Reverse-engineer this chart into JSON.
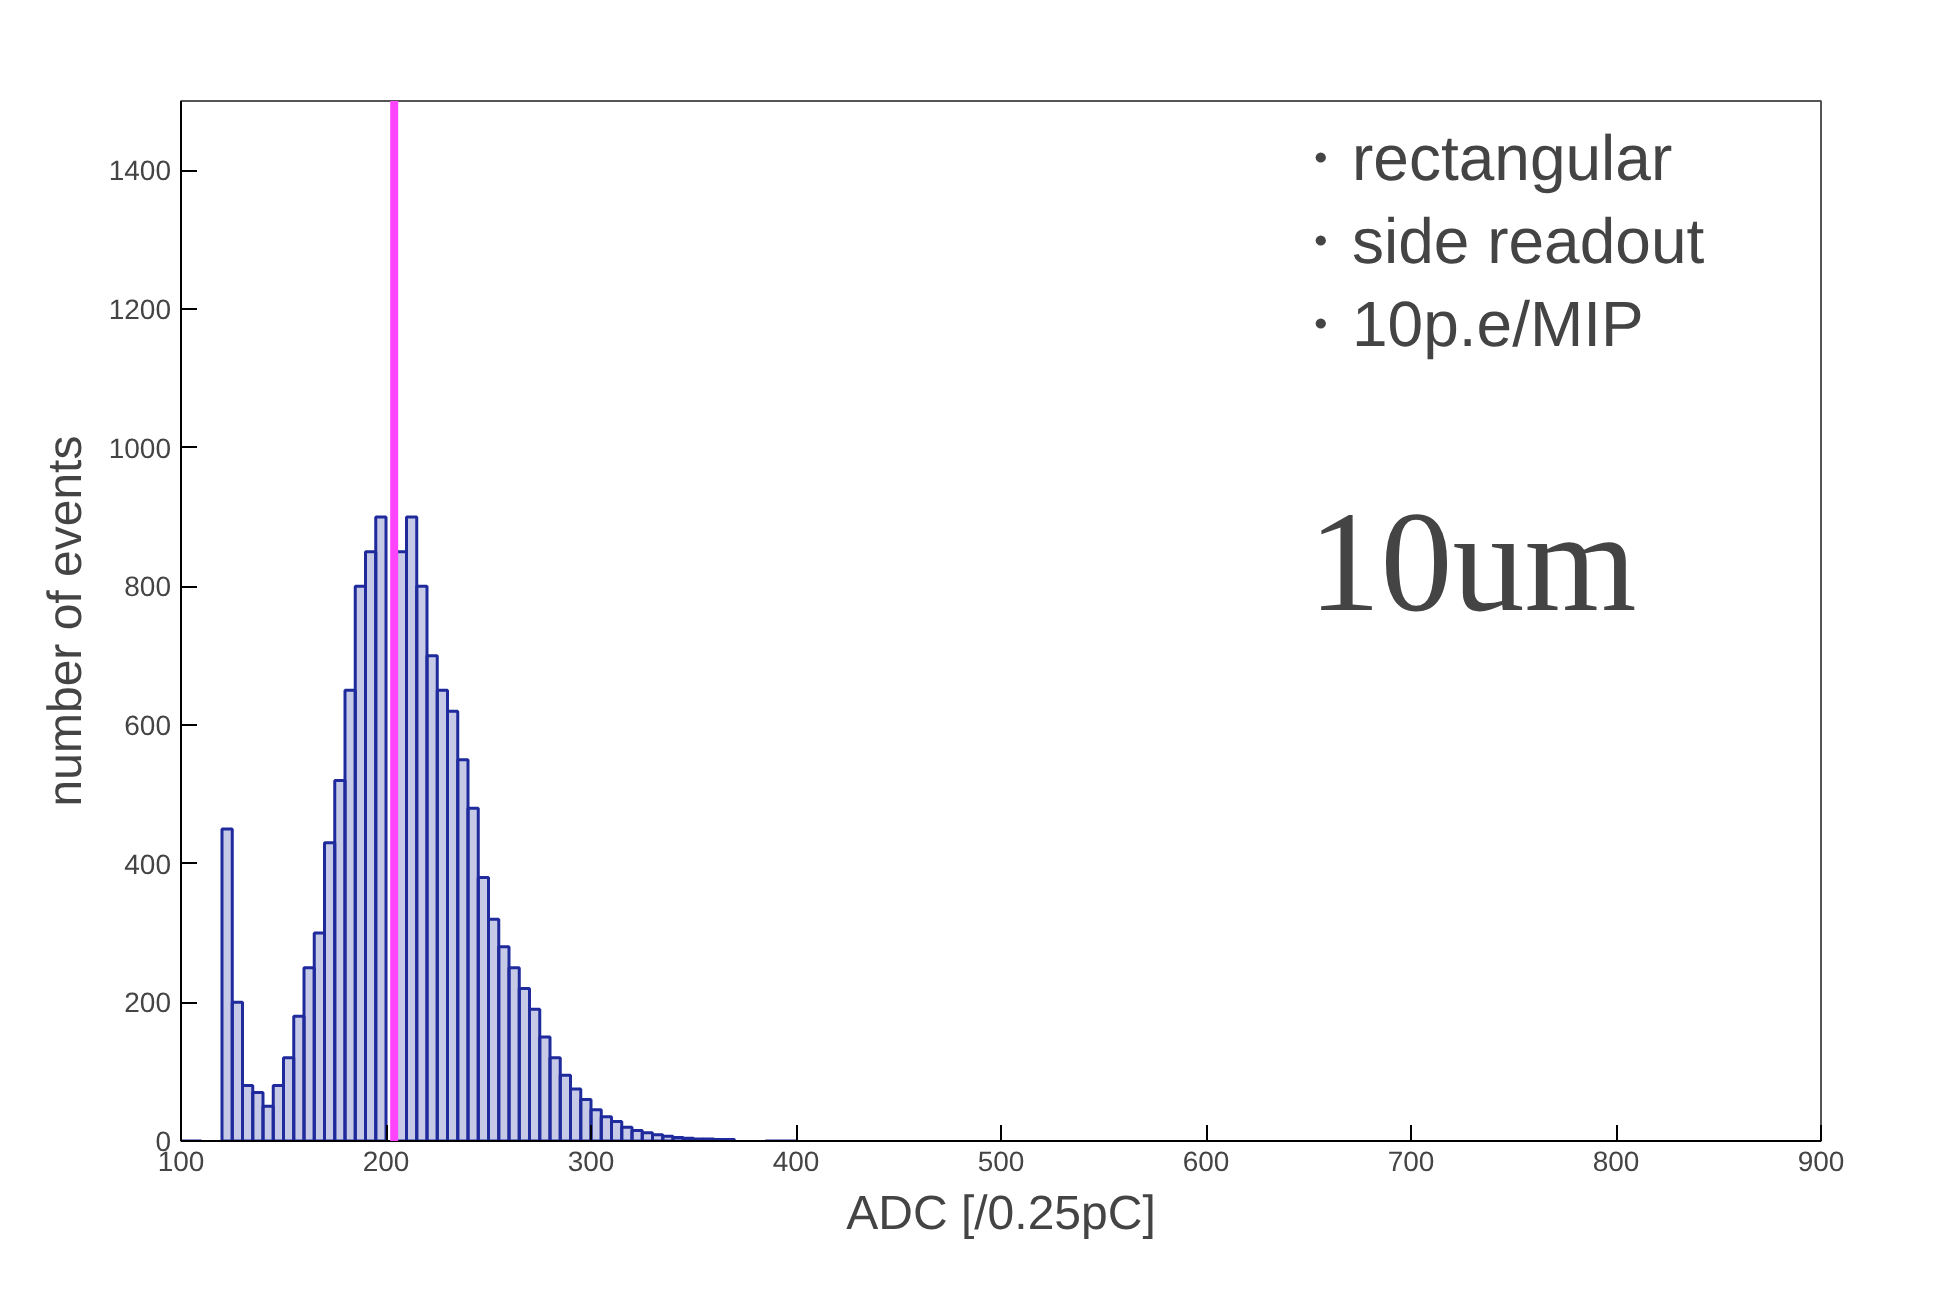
{
  "chart_data": {
    "type": "histogram",
    "xlabel": "ADC [/0.25pC]",
    "ylabel": "number of events",
    "annotations": [
      "・rectangular",
      "・side readout",
      "・10p.e/MIP",
      "10um"
    ],
    "bins": [
      100,
      105,
      110,
      115,
      120,
      125,
      130,
      135,
      140,
      145,
      150,
      155,
      160,
      165,
      170,
      175,
      180,
      185,
      190,
      195,
      200,
      205,
      210,
      215,
      220,
      225,
      230,
      235,
      240,
      245,
      250,
      255,
      260,
      265,
      270,
      275,
      280,
      285,
      290,
      295,
      300,
      305,
      310,
      315,
      320,
      325,
      330,
      335,
      340,
      345,
      350,
      355,
      360,
      365,
      370,
      375,
      380,
      385,
      390,
      395,
      400
    ],
    "values": [
      0,
      0,
      null,
      null,
      450,
      200,
      80,
      70,
      50,
      80,
      120,
      180,
      250,
      300,
      430,
      520,
      650,
      800,
      850,
      900,
      null,
      850,
      900,
      800,
      700,
      650,
      620,
      550,
      480,
      380,
      320,
      280,
      250,
      220,
      190,
      150,
      120,
      95,
      75,
      60,
      45,
      35,
      28,
      20,
      15,
      12,
      9,
      7,
      5,
      4,
      3,
      3,
      2,
      2,
      null,
      null,
      null,
      0,
      0,
      0
    ],
    "color": "#1f2a9c",
    "xlim": [
      100,
      900
    ],
    "ylim": [
      0,
      1500
    ],
    "xticks": [
      100,
      200,
      300,
      400,
      500,
      600,
      700,
      800,
      900
    ],
    "yticks": [
      0,
      200,
      400,
      600,
      800,
      1000,
      1200,
      1400
    ],
    "ref_lines": [
      {
        "axis": "x",
        "value": 204,
        "color": "#ff44ff"
      }
    ],
    "grid": false
  }
}
